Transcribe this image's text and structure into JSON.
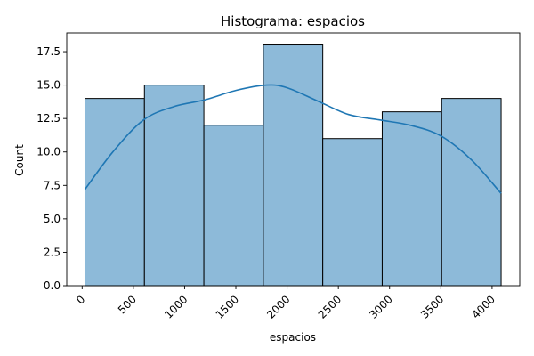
{
  "chart_data": {
    "type": "bar",
    "title": "Histograma: espacios",
    "xlabel": "espacios",
    "ylabel": "Count",
    "bins": [
      {
        "x0": 28,
        "x1": 608,
        "count": 14
      },
      {
        "x0": 608,
        "x1": 1188,
        "count": 15
      },
      {
        "x0": 1188,
        "x1": 1768,
        "count": 12
      },
      {
        "x0": 1768,
        "x1": 2348,
        "count": 18
      },
      {
        "x0": 2348,
        "x1": 2928,
        "count": 11
      },
      {
        "x0": 2928,
        "x1": 3508,
        "count": 13
      },
      {
        "x0": 3508,
        "x1": 4088,
        "count": 14
      }
    ],
    "kde": {
      "x": [
        28,
        300,
        600,
        900,
        1200,
        1500,
        1800,
        2000,
        2300,
        2600,
        2900,
        3200,
        3500,
        3800,
        4088
      ],
      "y": [
        7.2,
        10.0,
        12.4,
        13.4,
        13.9,
        14.6,
        15.0,
        14.8,
        13.8,
        12.8,
        12.4,
        12.0,
        11.2,
        9.4,
        6.9
      ]
    },
    "xlim": [
      -150,
      4270
    ],
    "ylim": [
      0,
      18.9
    ],
    "xticks": [
      0,
      500,
      1000,
      1500,
      2000,
      2500,
      3000,
      3500,
      4000
    ],
    "xtick_labels": [
      "0",
      "500",
      "1000",
      "1500",
      "2000",
      "2500",
      "3000",
      "3500",
      "4000"
    ],
    "yticks": [
      0,
      2.5,
      5,
      7.5,
      10,
      12.5,
      15,
      17.5
    ],
    "ytick_labels": [
      "0.0",
      "2.5",
      "5.0",
      "7.5",
      "10.0",
      "12.5",
      "15.0",
      "17.5"
    ],
    "grid": false,
    "colors": {
      "bar_fill": "#8dbad9",
      "bar_edge": "#000000",
      "kde_line": "#1f77b4"
    }
  }
}
